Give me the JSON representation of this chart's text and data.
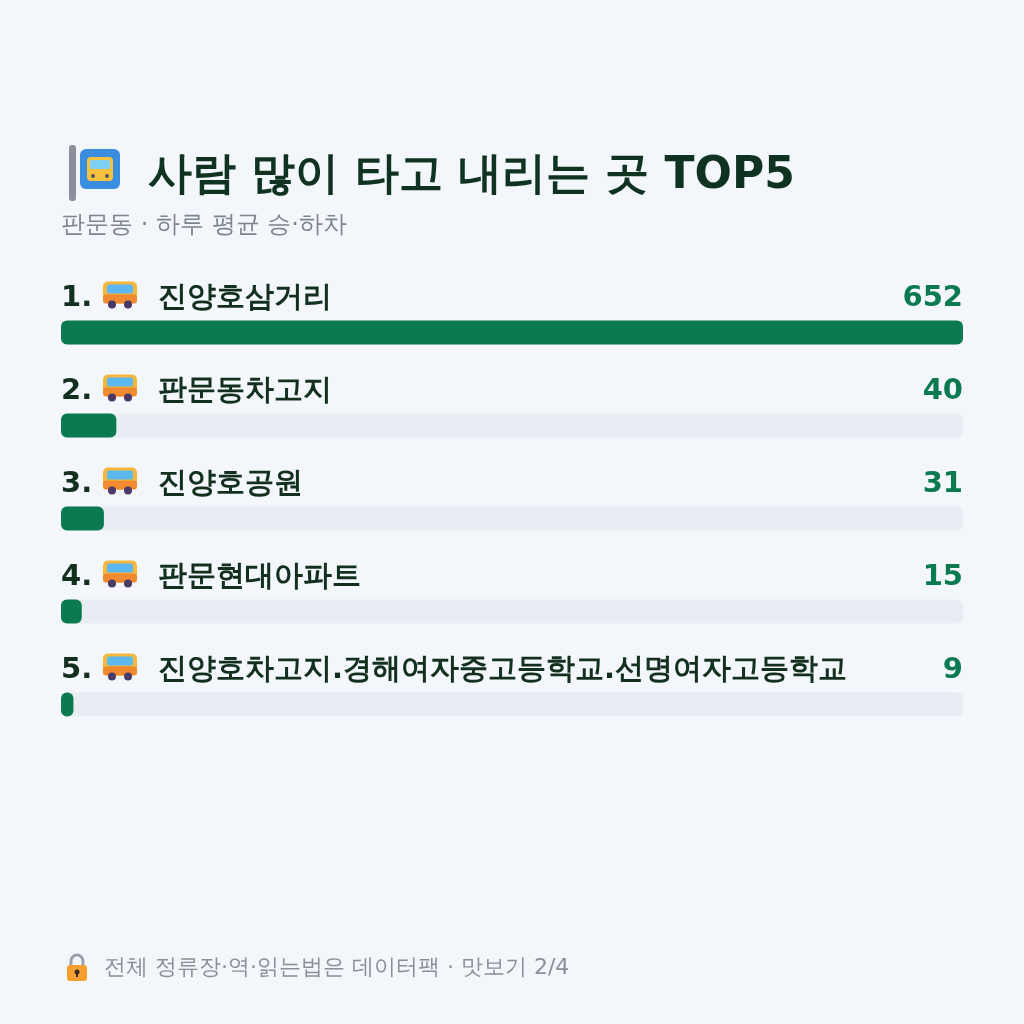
{
  "chart_data": {
    "type": "bar",
    "orientation": "horizontal",
    "title": "사람 많이 타고 내리는 곳 TOP5",
    "subtitle": "판문동 · 하루 평균 승·하차",
    "categories": [
      "1. 진양호삼거리",
      "2. 판문동차고지",
      "3. 진양호공원",
      "4. 판문현대아파트",
      "5. 진양호차고지.경해여자중고등학교.선명여자고등학교"
    ],
    "values": [
      652,
      40,
      31,
      15,
      9
    ],
    "color": "#0b7a50",
    "data_labels": true,
    "tick_labels": "y",
    "annotations": [
      "전체 정류장·역·읽는법은 데이터팩 · 맛보기 2/4"
    ]
  }
}
